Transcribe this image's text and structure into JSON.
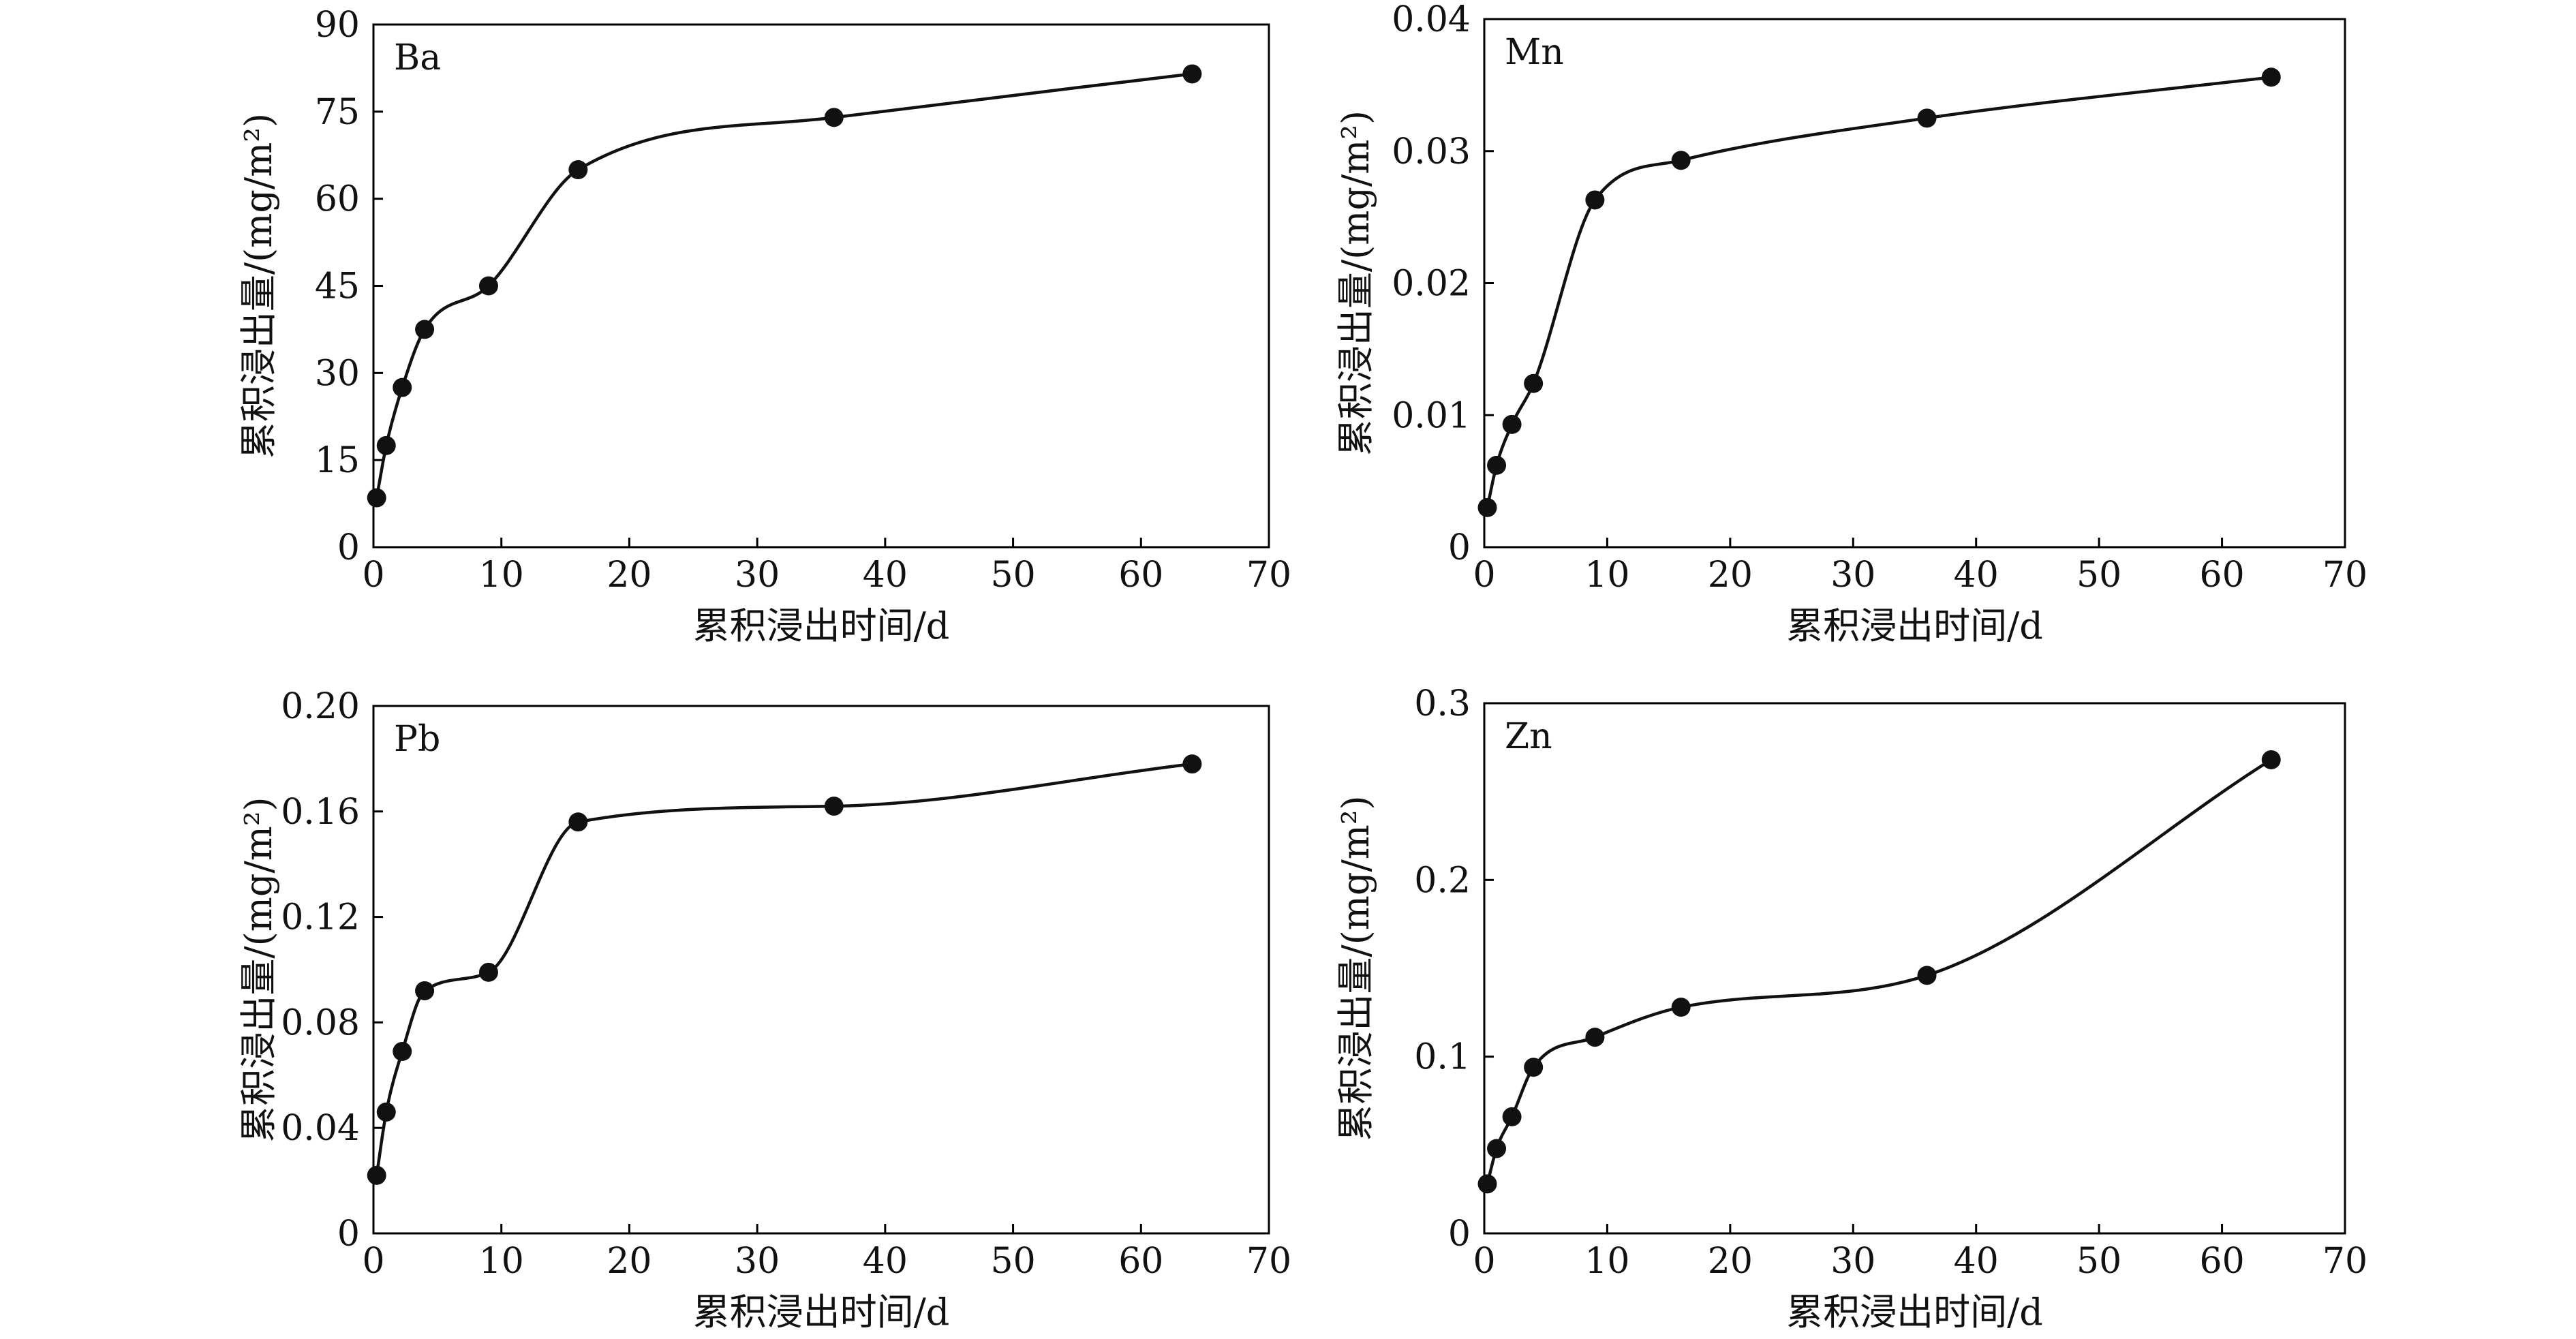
{
  "chart_data": [
    {
      "type": "line",
      "label": "Ba",
      "xlabel": "累积浸出时间/d",
      "ylabel": "累积浸出量/(mg/m²)",
      "xlim": [
        0,
        70
      ],
      "ylim": [
        0,
        90
      ],
      "xticks": [
        "0",
        "10",
        "20",
        "30",
        "40",
        "50",
        "60",
        "70"
      ],
      "yticks": [
        "0",
        "15",
        "30",
        "45",
        "60",
        "75",
        "90"
      ],
      "x": [
        0.25,
        1,
        2.25,
        4,
        9,
        16,
        36,
        64
      ],
      "y": [
        8.5,
        17.5,
        27.5,
        37.5,
        45,
        65,
        74,
        81.5
      ],
      "color": "#555555"
    },
    {
      "type": "line",
      "label": "Mn",
      "xlabel": "累积浸出时间/d",
      "ylabel": "累积浸出量/(mg/m²)",
      "xlim": [
        0,
        70
      ],
      "ylim": [
        0,
        0.04
      ],
      "xticks": [
        "0",
        "10",
        "20",
        "30",
        "40",
        "50",
        "60",
        "70"
      ],
      "yticks": [
        "0",
        "0.01",
        "0.02",
        "0.03",
        "0.04"
      ],
      "x": [
        0.25,
        1,
        2.25,
        4,
        9,
        16,
        36,
        64
      ],
      "y": [
        0.003,
        0.0062,
        0.0093,
        0.0124,
        0.0263,
        0.0293,
        0.0325,
        0.0356
      ],
      "color": "#111111"
    },
    {
      "type": "line",
      "label": "Pb",
      "xlabel": "累积浸出时间/d",
      "ylabel": "累积浸出量/(mg/m²)",
      "xlim": [
        0,
        70
      ],
      "ylim": [
        0,
        0.2
      ],
      "xticks": [
        "0",
        "10",
        "20",
        "30",
        "40",
        "50",
        "60",
        "70"
      ],
      "yticks": [
        "0",
        "0.04",
        "0.08",
        "0.12",
        "0.16",
        "0.20"
      ],
      "x": [
        0.25,
        1,
        2.25,
        4,
        9,
        16,
        36,
        64
      ],
      "y": [
        0.022,
        0.046,
        0.069,
        0.092,
        0.099,
        0.156,
        0.162,
        0.178
      ],
      "color": "#111111"
    },
    {
      "type": "line",
      "label": "Zn",
      "xlabel": "累积浸出时间/d",
      "ylabel": "累积浸出量/(mg/m²)",
      "xlim": [
        0,
        70
      ],
      "ylim": [
        0,
        0.3
      ],
      "xticks": [
        "0",
        "10",
        "20",
        "30",
        "40",
        "50",
        "60",
        "70"
      ],
      "yticks": [
        "0",
        "0.1",
        "0.2",
        "0.3"
      ],
      "x": [
        0.25,
        1,
        2.25,
        4,
        9,
        16,
        36,
        64
      ],
      "y": [
        0.028,
        0.048,
        0.066,
        0.094,
        0.111,
        0.128,
        0.146,
        0.268
      ],
      "color": "#111111"
    }
  ]
}
